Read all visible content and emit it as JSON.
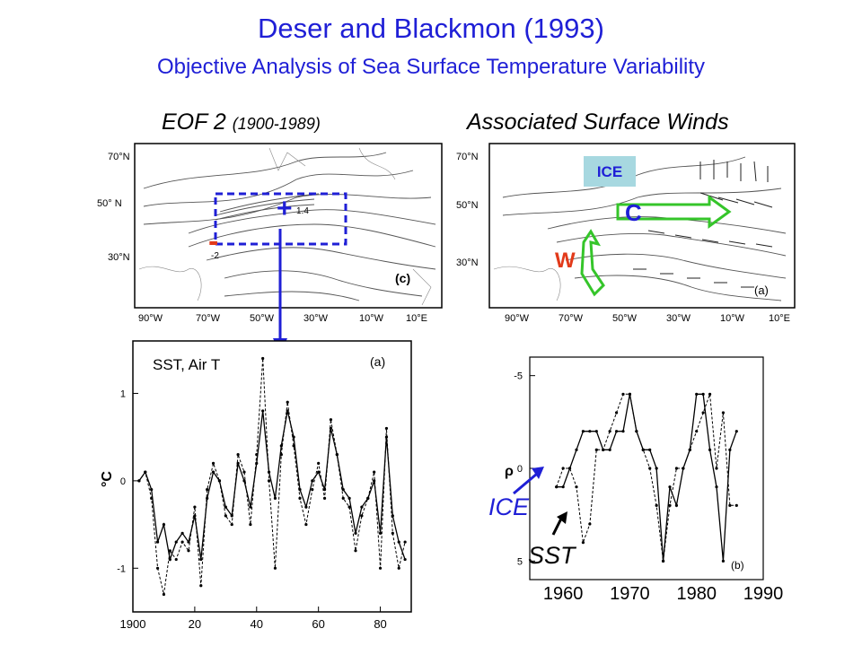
{
  "title": "Deser and Blackmon (1993)",
  "subtitle": "Objective Analysis of Sea Surface Temperature Variability",
  "left_map": {
    "heading_main": "EOF 2",
    "heading_period": "(1900-1989)",
    "panel_tag": "(c)",
    "lat_labels": [
      "70°N",
      "50° N",
      "30°N"
    ],
    "lon_labels": [
      "90°W",
      "70°W",
      "50°W",
      "30°W",
      "10°W",
      "10°E"
    ],
    "contour_labels": [
      "1.4",
      "-2"
    ],
    "plus_sign": "+",
    "minus_sign": "-",
    "box_color": "#1f1fd6",
    "minus_color": "#e23a1a"
  },
  "right_map": {
    "heading": "Associated Surface Winds",
    "panel_tag": "(a)",
    "ice_label": "ICE",
    "ice_bg": "#a7d8e0",
    "cold_label": "C",
    "warm_label": "W",
    "lat_labels": [
      "70°N",
      "50°N",
      "30°N"
    ],
    "lon_labels": [
      "90°W",
      "70°W",
      "50°W",
      "30°W",
      "10°W",
      "10°E"
    ],
    "arrow_color": "#35c52a",
    "cold_color": "#1f1fd6",
    "warm_color": "#e23a1a"
  },
  "chart_data": [
    {
      "type": "line",
      "panel_tag": "(a)",
      "annotation": "SST, Air T",
      "ylabel": "°C",
      "xlim": [
        1900,
        1990
      ],
      "ylim": [
        -1.5,
        1.6
      ],
      "x_ticks": [
        1900,
        1920,
        1940,
        1960,
        1980
      ],
      "x_tick_labels": [
        "1900",
        "20",
        "40",
        "60",
        "80"
      ],
      "y_ticks": [
        1,
        0,
        -1
      ],
      "y_tick_labels": [
        "1",
        "0",
        "-1"
      ],
      "series": [
        {
          "style": "solid",
          "x": [
            1902,
            1904,
            1906,
            1908,
            1910,
            1912,
            1914,
            1916,
            1918,
            1920,
            1922,
            1924,
            1926,
            1928,
            1930,
            1932,
            1934,
            1936,
            1938,
            1940,
            1942,
            1944,
            1946,
            1948,
            1950,
            1952,
            1954,
            1956,
            1958,
            1960,
            1962,
            1964,
            1966,
            1968,
            1970,
            1972,
            1974,
            1976,
            1978,
            1980,
            1982,
            1984,
            1986,
            1988
          ],
          "y": [
            0.0,
            0.1,
            -0.1,
            -0.7,
            -0.5,
            -0.9,
            -0.7,
            -0.6,
            -0.7,
            -0.4,
            -0.9,
            -0.2,
            0.1,
            0.0,
            -0.3,
            -0.4,
            0.2,
            0.0,
            -0.3,
            0.2,
            0.8,
            0.1,
            -0.2,
            0.4,
            0.8,
            0.5,
            -0.1,
            -0.3,
            0.0,
            0.1,
            -0.1,
            0.6,
            0.3,
            -0.1,
            -0.2,
            -0.6,
            -0.3,
            -0.2,
            0.0,
            -0.6,
            0.5,
            -0.4,
            -0.7,
            -0.9
          ]
        },
        {
          "style": "dashed",
          "x": [
            1902,
            1904,
            1906,
            1908,
            1910,
            1912,
            1914,
            1916,
            1918,
            1920,
            1922,
            1924,
            1926,
            1928,
            1930,
            1932,
            1934,
            1936,
            1938,
            1940,
            1942,
            1944,
            1946,
            1948,
            1950,
            1952,
            1954,
            1956,
            1958,
            1960,
            1962,
            1964,
            1966,
            1968,
            1970,
            1972,
            1974,
            1976,
            1978,
            1980,
            1982,
            1984,
            1986,
            1988
          ],
          "y": [
            0.0,
            0.1,
            -0.2,
            -1.0,
            -1.3,
            -0.8,
            -0.9,
            -0.7,
            -0.8,
            -0.3,
            -1.2,
            -0.1,
            0.2,
            0.0,
            -0.4,
            -0.5,
            0.3,
            0.1,
            -0.5,
            0.3,
            1.4,
            0.0,
            -1.0,
            0.3,
            0.9,
            0.4,
            -0.2,
            -0.5,
            -0.1,
            0.2,
            -0.2,
            0.7,
            0.3,
            -0.2,
            -0.3,
            -0.8,
            -0.4,
            -0.2,
            0.1,
            -1.0,
            0.6,
            -0.6,
            -1.0,
            -0.7
          ]
        }
      ]
    },
    {
      "type": "line",
      "panel_tag": "(b)",
      "ylabel": "ρ",
      "xlim": [
        1955,
        1990
      ],
      "ylim": [
        -6,
        6
      ],
      "y_inverted": true,
      "x_tick_labels": [
        "1960",
        "1970",
        "1980",
        "1990"
      ],
      "x_ticks": [
        1960,
        1970,
        1980,
        1990
      ],
      "y_ticks": [
        -5,
        0,
        5
      ],
      "y_tick_labels": [
        "-5",
        "0",
        "5"
      ],
      "series_labels": [
        "ICE",
        "SST"
      ],
      "series": [
        {
          "name": "ICE",
          "style": "solid",
          "x": [
            1959,
            1960,
            1961,
            1962,
            1963,
            1964,
            1965,
            1966,
            1967,
            1968,
            1969,
            1970,
            1971,
            1972,
            1973,
            1974,
            1975,
            1976,
            1977,
            1978,
            1979,
            1980,
            1981,
            1982,
            1983,
            1984,
            1985,
            1986
          ],
          "y": [
            1,
            1,
            0,
            -1,
            -2,
            -2,
            -2,
            -1,
            -1,
            -2,
            -2,
            -4,
            -2,
            -1,
            -1,
            0,
            5,
            1,
            2,
            0,
            -1,
            -4,
            -4,
            -1,
            1,
            5,
            -1,
            -2
          ]
        },
        {
          "name": "SST",
          "style": "dashed",
          "x": [
            1959,
            1960,
            1961,
            1962,
            1963,
            1964,
            1965,
            1966,
            1967,
            1968,
            1969,
            1970,
            1971,
            1972,
            1973,
            1974,
            1975,
            1976,
            1977,
            1978,
            1979,
            1980,
            1981,
            1982,
            1983,
            1984,
            1985,
            1986
          ],
          "y": [
            1,
            0,
            0,
            1,
            4,
            3,
            -1,
            -1,
            -2,
            -3,
            -4,
            -4,
            -2,
            -1,
            0,
            2,
            5,
            2,
            0,
            0,
            -1,
            -2,
            -3,
            -4,
            0,
            -3,
            2,
            2
          ]
        }
      ]
    }
  ],
  "ice_label_color": "#1f1fd6"
}
